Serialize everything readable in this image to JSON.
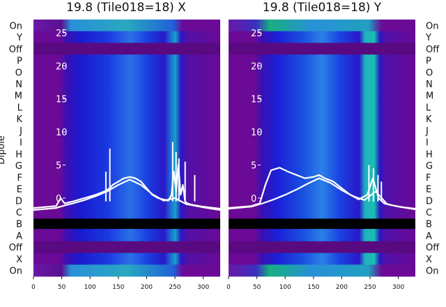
{
  "chart_data": {
    "type": "heatmap",
    "ylabel": "Dipole",
    "row_labels_top_to_bottom": [
      "On",
      "Y",
      "Off",
      "P",
      "O",
      "N",
      "M",
      "L",
      "K",
      "J",
      "I",
      "H",
      "G",
      "F",
      "E",
      "D",
      "C",
      "B",
      "A",
      "Off",
      "X",
      "On"
    ],
    "xlim": [
      0,
      330
    ],
    "x_ticks": [
      0,
      50,
      100,
      150,
      200,
      250,
      300
    ],
    "overlay_ylim": [
      -3,
      27
    ],
    "overlay_y_ticks": [
      0,
      5,
      10,
      15,
      20,
      25
    ],
    "colors": {
      "divider": "#000000",
      "overlay_line": "#ffffff",
      "background": "#7a0a98"
    },
    "panels": [
      {
        "title": "19.8 (Tile018=18) X",
        "overlay_series": [
          {
            "x": [
              0,
              40,
              48,
              55,
              70,
              90,
              110,
              125,
              135,
              140,
              150,
              160,
              170,
              180,
              190,
              200,
              210,
              220,
              230,
              238,
              244,
              248,
              252,
              256,
              260,
              264,
              268,
              272,
              280,
              300,
              330
            ],
            "y": [
              -1.5,
              -1.2,
              0.0,
              -0.8,
              -0.5,
              0.0,
              0.5,
              1.0,
              1.5,
              2.0,
              2.5,
              3.0,
              3.2,
              3.0,
              2.5,
              1.5,
              0.5,
              0.0,
              -0.2,
              -0.4,
              0.5,
              4.0,
              1.0,
              5.0,
              0.5,
              2.0,
              -0.5,
              -0.8,
              -1.0,
              -1.3,
              -1.6
            ]
          },
          {
            "x": [
              0,
              40,
              55,
              70,
              90,
              110,
              130,
              150,
              170,
              190,
              210,
              230,
              250,
              270,
              300,
              330
            ],
            "y": [
              -1.8,
              -1.5,
              -1.1,
              -0.8,
              -0.3,
              0.3,
              1.0,
              2.0,
              2.8,
              2.0,
              0.6,
              -0.4,
              0.0,
              -0.9,
              -1.4,
              -1.8
            ]
          }
        ],
        "overlay_spikes": [
          {
            "x": 135,
            "y": 7.5
          },
          {
            "x": 128,
            "y": 4.0
          },
          {
            "x": 246,
            "y": 8.5
          },
          {
            "x": 252,
            "y": 7.0
          },
          {
            "x": 257,
            "y": 6.0
          },
          {
            "x": 268,
            "y": 5.5
          },
          {
            "x": 285,
            "y": 3.5
          }
        ]
      },
      {
        "title": "19.8 (Tile018=18) Y",
        "overlay_series": [
          {
            "x": [
              0,
              40,
              55,
              65,
              75,
              90,
              105,
              120,
              135,
              150,
              160,
              170,
              185,
              200,
              215,
              230,
              245,
              255,
              265,
              275,
              290,
              310,
              330
            ],
            "y": [
              -1.5,
              -1.2,
              -0.8,
              2.0,
              4.2,
              4.6,
              4.0,
              3.5,
              3.0,
              3.2,
              3.5,
              3.0,
              2.5,
              1.5,
              0.5,
              -0.2,
              0.5,
              3.0,
              0.0,
              -0.8,
              -1.1,
              -1.4,
              -1.6
            ]
          },
          {
            "x": [
              0,
              40,
              60,
              80,
              100,
              120,
              140,
              160,
              180,
              200,
              220,
              240,
              260,
              280,
              300,
              330
            ],
            "y": [
              -1.6,
              -1.3,
              -0.8,
              -0.2,
              0.5,
              1.3,
              2.2,
              3.0,
              2.3,
              1.2,
              0.3,
              -0.3,
              1.0,
              -0.9,
              -1.3,
              -1.7
            ]
          }
        ],
        "overlay_spikes": [
          {
            "x": 248,
            "y": 5.0
          },
          {
            "x": 256,
            "y": 4.5
          },
          {
            "x": 264,
            "y": 3.5
          },
          {
            "x": 270,
            "y": 2.5
          }
        ]
      }
    ]
  }
}
